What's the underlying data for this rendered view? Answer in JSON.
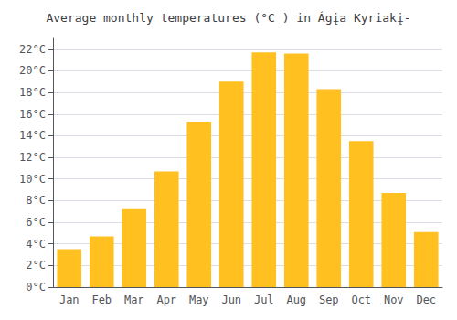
{
  "chart_data": {
    "type": "bar",
    "title": "Average monthly temperatures (°C ) in Ágįa Kyriakį-",
    "categories": [
      "Jan",
      "Feb",
      "Mar",
      "Apr",
      "May",
      "Jun",
      "Jul",
      "Aug",
      "Sep",
      "Oct",
      "Nov",
      "Dec"
    ],
    "values": [
      3.5,
      4.7,
      7.2,
      10.7,
      15.3,
      19.0,
      21.7,
      21.6,
      18.3,
      13.5,
      8.7,
      5.1
    ],
    "color": "#FFC020",
    "ylim": [
      0,
      23
    ],
    "yticks": [
      {
        "value": 0,
        "label": "0°C"
      },
      {
        "value": 2,
        "label": "2°C"
      },
      {
        "value": 4,
        "label": "4°C"
      },
      {
        "value": 6,
        "label": "6°C"
      },
      {
        "value": 8,
        "label": "8°C"
      },
      {
        "value": 10,
        "label": "10°C"
      },
      {
        "value": 12,
        "label": "12°C"
      },
      {
        "value": 14,
        "label": "14°C"
      },
      {
        "value": 16,
        "label": "16°C"
      },
      {
        "value": 18,
        "label": "18°C"
      },
      {
        "value": 20,
        "label": "20°C"
      },
      {
        "value": 22,
        "label": "22°C"
      }
    ],
    "grid": true
  }
}
